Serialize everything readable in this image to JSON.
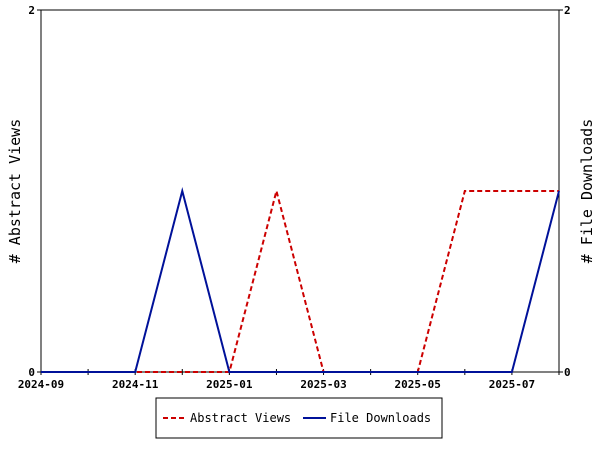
{
  "chart_data": {
    "type": "line",
    "x": [
      "2024-09",
      "2024-10",
      "2024-11",
      "2024-12",
      "2025-01",
      "2025-02",
      "2025-03",
      "2025-04",
      "2025-05",
      "2025-06",
      "2025-07",
      "2025-08"
    ],
    "x_tick_labels": [
      "2024-09",
      "2024-11",
      "2025-01",
      "2025-03",
      "2025-05",
      "2025-07"
    ],
    "series": [
      {
        "name": "Abstract Views",
        "axis": "left",
        "color": "#cc0000",
        "dash": true,
        "values": [
          0,
          0,
          0,
          0,
          0,
          1,
          0,
          0,
          0,
          1,
          1,
          1
        ]
      },
      {
        "name": "File Downloads",
        "axis": "right",
        "color": "#001199",
        "dash": false,
        "values": [
          0,
          0,
          0,
          1,
          0,
          0,
          0,
          0,
          0,
          0,
          0,
          1
        ]
      }
    ],
    "ylabel_left": "# Abstract Views",
    "ylabel_right": "# File Downloads",
    "ylim_left": [
      0,
      2
    ],
    "ylim_right": [
      0,
      2
    ],
    "y_ticks_left": [
      "0",
      "2"
    ],
    "y_ticks_right": [
      "0",
      "2"
    ],
    "grid": false,
    "legend_position": "bottom"
  }
}
